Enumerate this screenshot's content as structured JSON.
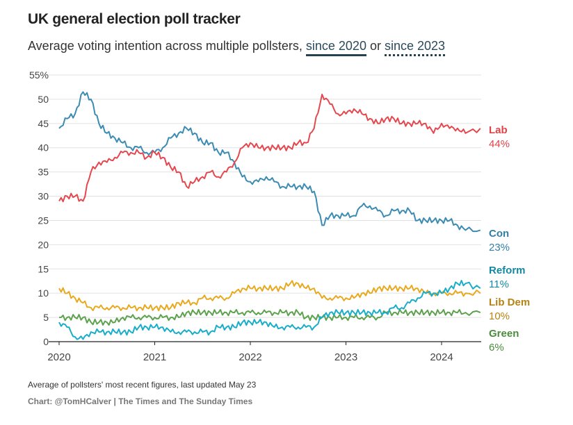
{
  "header": {
    "title": "UK general election poll tracker",
    "subtitle_prefix": "Average voting intention across multiple pollsters, ",
    "link_since_2020": "since 2020",
    "subtitle_or": " or ",
    "link_since_2023": "since 2023"
  },
  "footer": {
    "note": "Average of pollsters' most recent figures, last updated May 23",
    "credit": "Chart: @TomHCalver | The Times and The Sunday Times"
  },
  "chart_data": {
    "type": "line",
    "xlabel": "",
    "ylabel": "",
    "ylim": [
      0,
      55
    ],
    "y_ticks": [
      "0",
      "5",
      "10",
      "15",
      "20",
      "25",
      "30",
      "35",
      "40",
      "45",
      "50",
      "55%"
    ],
    "x_ticks": [
      "2020",
      "2021",
      "2022",
      "2023",
      "2024"
    ],
    "grid": true,
    "legend": "direct labels at right",
    "x": [
      "2020-01",
      "2020-02",
      "2020-03",
      "2020-04",
      "2020-05",
      "2020-06",
      "2020-07",
      "2020-08",
      "2020-09",
      "2020-10",
      "2020-11",
      "2020-12",
      "2021-01",
      "2021-02",
      "2021-03",
      "2021-04",
      "2021-05",
      "2021-06",
      "2021-07",
      "2021-08",
      "2021-09",
      "2021-10",
      "2021-11",
      "2021-12",
      "2022-01",
      "2022-02",
      "2022-03",
      "2022-04",
      "2022-05",
      "2022-06",
      "2022-07",
      "2022-08",
      "2022-09",
      "2022-10",
      "2022-11",
      "2022-12",
      "2023-01",
      "2023-02",
      "2023-03",
      "2023-04",
      "2023-05",
      "2023-06",
      "2023-07",
      "2023-08",
      "2023-09",
      "2023-10",
      "2023-11",
      "2023-12",
      "2024-01",
      "2024-02",
      "2024-03",
      "2024-04",
      "2024-05"
    ],
    "series": [
      {
        "name": "Lab",
        "latest": "44%",
        "color": "#e4484e",
        "label_color": "#e0434a",
        "values": [
          29,
          30,
          30,
          29,
          35,
          37,
          37,
          38,
          39,
          39,
          39,
          38,
          39,
          38,
          36,
          35,
          32,
          33,
          34,
          35,
          34,
          35,
          37,
          40,
          41,
          40,
          40,
          40,
          40,
          40,
          41,
          41,
          44,
          51,
          49,
          47,
          47,
          48,
          47,
          46,
          45,
          46,
          46,
          45,
          45,
          45,
          45,
          43,
          45,
          44,
          44,
          43,
          44
        ]
      },
      {
        "name": "Con",
        "latest": "23%",
        "color": "#3b8bb3",
        "label_color": "#2f80a8",
        "values": [
          44,
          46,
          47,
          51.5,
          50,
          45,
          43,
          42,
          41,
          40,
          40,
          39,
          39,
          40,
          42,
          43,
          44,
          43,
          41,
          41,
          39,
          39,
          37,
          34,
          33,
          33,
          34,
          33,
          32,
          32,
          32,
          32,
          31,
          24,
          26,
          26,
          26,
          26,
          28,
          28,
          27,
          26,
          27,
          27,
          27,
          25,
          25,
          25,
          25,
          25,
          24,
          23,
          23
        ]
      },
      {
        "name": "Reform",
        "latest": "11%",
        "color": "#19adc9",
        "label_color": "#13889f",
        "values": [
          4,
          3,
          1,
          0.5,
          2,
          2,
          2,
          2,
          2,
          2,
          3,
          3,
          3,
          3,
          2,
          2,
          2,
          2,
          2,
          2,
          3,
          3,
          3,
          4,
          4,
          4,
          4,
          3,
          3,
          3,
          3,
          3,
          3,
          5,
          6,
          6,
          6,
          6,
          6,
          6,
          6,
          6,
          7,
          7,
          8,
          9,
          10,
          10,
          10,
          11,
          12,
          12,
          11
        ]
      },
      {
        "name": "Lib Dem",
        "latest": "10%",
        "color": "#e8a91f",
        "label_color": "#b38414",
        "values": [
          11,
          10,
          9,
          8,
          7,
          7,
          7,
          7,
          7,
          7,
          7,
          7,
          7,
          7,
          7,
          8,
          8,
          8,
          9,
          9,
          9,
          9,
          10,
          11,
          11,
          11,
          11,
          11,
          11,
          12,
          12,
          11,
          11,
          9,
          9,
          9,
          9,
          9,
          10,
          10,
          11,
          11,
          11,
          11,
          11,
          11,
          10,
          10,
          10,
          10,
          10,
          10,
          10
        ]
      },
      {
        "name": "Green",
        "latest": "6%",
        "color": "#5ca24d",
        "label_color": "#4a8c3c",
        "values": [
          5,
          5,
          5,
          5,
          4,
          4,
          4,
          4,
          5,
          5,
          5,
          5,
          5,
          5,
          5,
          5,
          6,
          6,
          6,
          6,
          6,
          6,
          6,
          6,
          6,
          6,
          6,
          6,
          6,
          6,
          6,
          5,
          5,
          5,
          5,
          5,
          5,
          5,
          5,
          5,
          5,
          6,
          6,
          6,
          6,
          6,
          6,
          6,
          6,
          6,
          6,
          6,
          6
        ]
      }
    ]
  }
}
